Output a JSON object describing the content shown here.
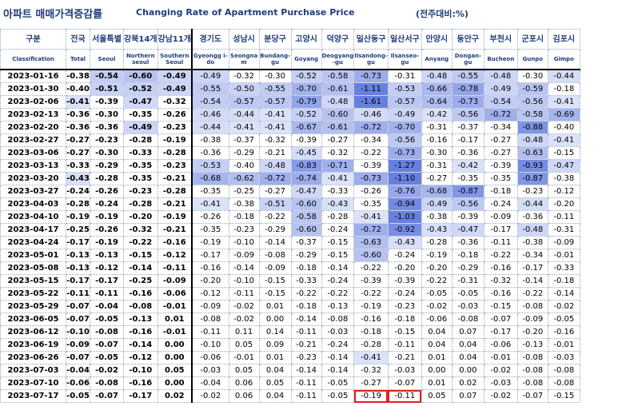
{
  "title": {
    "korean": "아파트 매매가격증감률",
    "english": "Changing Rate of Apartment Purchase Price",
    "unit": "(전주대비:%)"
  },
  "colors": {
    "header_text": "#1f3d7a",
    "highlight_box": "#e0201b",
    "heat_scale_min": "#ffffff",
    "heat_scale_max": "#6f86df"
  },
  "columns": [
    {
      "ko": "구분",
      "en": "Classification"
    },
    {
      "ko": "전국",
      "en": "Total"
    },
    {
      "ko": "서울특별",
      "en": "Seoul"
    },
    {
      "ko": "강북14개",
      "en": "Northern seoul"
    },
    {
      "ko": "강남11개",
      "en": "Southern Seoul"
    },
    {
      "ko": "경기도",
      "en": "Gyeongg i-do"
    },
    {
      "ko": "성남시",
      "en": "Seongna m"
    },
    {
      "ko": "분당구",
      "en": "Bundang-gu"
    },
    {
      "ko": "고양시",
      "en": "Goyang"
    },
    {
      "ko": "덕양구",
      "en": "Deogyang -gu"
    },
    {
      "ko": "일산동구",
      "en": "Ilsandong-gu"
    },
    {
      "ko": "일산서구",
      "en": "Ilsanseo-gu"
    },
    {
      "ko": "안양시",
      "en": "Anyang"
    },
    {
      "ko": "동안구",
      "en": "Dongan-gu"
    },
    {
      "ko": "부천시",
      "en": "Bucheon"
    },
    {
      "ko": "군포시",
      "en": "Gunpo"
    },
    {
      "ko": "김포시",
      "en": "Gimpo"
    }
  ],
  "rows": [
    {
      "date": "2023-01-16",
      "values": [
        "-0.38",
        "-0.54",
        "-0.60",
        "-0.49",
        "-0.49",
        "-0.32",
        "-0.30",
        "-0.52",
        "-0.58",
        "-0.73",
        "-0.31",
        "-0.48",
        "-0.55",
        "-0.48",
        "-0.30",
        "-0.44"
      ]
    },
    {
      "date": "2023-01-30",
      "values": [
        "-0.40",
        "-0.51",
        "-0.52",
        "-0.49",
        "-0.55",
        "-0.50",
        "-0.55",
        "-0.70",
        "-0.61",
        "-1.11",
        "-0.53",
        "-0.66",
        "-0.78",
        "-0.49",
        "-0.59",
        "-0.18"
      ]
    },
    {
      "date": "2023-02-06",
      "values": [
        "-0.41",
        "-0.39",
        "-0.47",
        "-0.32",
        "-0.54",
        "-0.57",
        "-0.57",
        "-0.79",
        "-0.48",
        "-1.61",
        "-0.57",
        "-0.64",
        "-0.73",
        "-0.54",
        "-0.56",
        "-0.41"
      ]
    },
    {
      "date": "2023-02-13",
      "values": [
        "-0.36",
        "-0.30",
        "-0.35",
        "-0.26",
        "-0.46",
        "-0.44",
        "-0.41",
        "-0.52",
        "-0.60",
        "-0.46",
        "-0.49",
        "-0.42",
        "-0.56",
        "-0.72",
        "-0.58",
        "-0.69"
      ]
    },
    {
      "date": "2023-02-20",
      "values": [
        "-0.36",
        "-0.36",
        "-0.49",
        "-0.23",
        "-0.44",
        "-0.41",
        "-0.41",
        "-0.67",
        "-0.61",
        "-0.72",
        "-0.70",
        "-0.31",
        "-0.37",
        "-0.34",
        "-0.88",
        "-0.40"
      ]
    },
    {
      "date": "2023-02-27",
      "values": [
        "-0.27",
        "-0.23",
        "-0.28",
        "-0.19",
        "-0.38",
        "-0.37",
        "-0.32",
        "-0.39",
        "-0.27",
        "-0.34",
        "-0.56",
        "-0.16",
        "-0.17",
        "-0.27",
        "-0.48",
        "-0.41"
      ]
    },
    {
      "date": "2023-03-06",
      "values": [
        "-0.27",
        "-0.30",
        "-0.33",
        "-0.28",
        "-0.36",
        "-0.29",
        "-0.21",
        "-0.45",
        "-0.32",
        "-0.22",
        "-0.73",
        "-0.30",
        "-0.36",
        "-0.27",
        "-0.63",
        "-0.15"
      ]
    },
    {
      "date": "2023-03-13",
      "values": [
        "-0.33",
        "-0.29",
        "-0.35",
        "-0.23",
        "-0.53",
        "-0.40",
        "-0.48",
        "-0.83",
        "-0.71",
        "-0.39",
        "-1.27",
        "-0.31",
        "-0.42",
        "-0.39",
        "-0.93",
        "-0.47"
      ]
    },
    {
      "date": "2023-03-20",
      "values": [
        "-0.43",
        "-0.28",
        "-0.35",
        "-0.21",
        "-0.68",
        "-0.62",
        "-0.72",
        "-0.74",
        "-0.41",
        "-0.73",
        "-1.10",
        "-0.27",
        "-0.35",
        "-0.35",
        "-0.87",
        "-0.38"
      ]
    },
    {
      "date": "2023-03-27",
      "values": [
        "-0.24",
        "-0.26",
        "-0.23",
        "-0.28",
        "-0.35",
        "-0.25",
        "-0.27",
        "-0.47",
        "-0.33",
        "-0.26",
        "-0.76",
        "-0.68",
        "-0.87",
        "-0.18",
        "-0.23",
        "-0.12"
      ]
    },
    {
      "date": "2023-04-03",
      "values": [
        "-0.28",
        "-0.24",
        "-0.28",
        "-0.21",
        "-0.41",
        "-0.38",
        "-0.51",
        "-0.60",
        "-0.43",
        "-0.35",
        "-0.94",
        "-0.49",
        "-0.56",
        "-0.24",
        "-0.44",
        "-0.20"
      ]
    },
    {
      "date": "2023-04-10",
      "values": [
        "-0.19",
        "-0.19",
        "-0.20",
        "-0.19",
        "-0.26",
        "-0.18",
        "-0.22",
        "-0.58",
        "-0.28",
        "-0.41",
        "-1.03",
        "-0.38",
        "-0.39",
        "-0.09",
        "-0.36",
        "-0.11"
      ]
    },
    {
      "date": "2023-04-17",
      "values": [
        "-0.25",
        "-0.26",
        "-0.32",
        "-0.21",
        "-0.35",
        "-0.23",
        "-0.29",
        "-0.60",
        "-0.24",
        "-0.72",
        "-0.92",
        "-0.43",
        "-0.47",
        "-0.17",
        "-0.48",
        "-0.31"
      ]
    },
    {
      "date": "2023-04-24",
      "values": [
        "-0.17",
        "-0.19",
        "-0.22",
        "-0.16",
        "-0.19",
        "-0.10",
        "-0.14",
        "-0.37",
        "-0.15",
        "-0.63",
        "-0.43",
        "-0.28",
        "-0.36",
        "-0.11",
        "-0.38",
        "-0.09"
      ]
    },
    {
      "date": "2023-05-01",
      "values": [
        "-0.13",
        "-0.13",
        "-0.15",
        "-0.12",
        "-0.17",
        "-0.09",
        "-0.08",
        "-0.29",
        "-0.15",
        "-0.60",
        "-0.24",
        "-0.19",
        "-0.18",
        "-0.22",
        "-0.34",
        "-0.01"
      ]
    },
    {
      "date": "2023-05-08",
      "values": [
        "-0.13",
        "-0.12",
        "-0.14",
        "-0.11",
        "-0.16",
        "-0.14",
        "-0.09",
        "-0.18",
        "-0.14",
        "-0.22",
        "-0.20",
        "-0.20",
        "-0.29",
        "-0.16",
        "-0.17",
        "-0.33"
      ]
    },
    {
      "date": "2023-05-15",
      "values": [
        "-0.17",
        "-0.17",
        "-0.25",
        "-0.09",
        "-0.20",
        "-0.10",
        "-0.15",
        "-0.33",
        "-0.24",
        "-0.39",
        "-0.39",
        "-0.22",
        "-0.31",
        "-0.32",
        "-0.14",
        "-0.18"
      ]
    },
    {
      "date": "2023-05-22",
      "values": [
        "-0.11",
        "-0.11",
        "-0.16",
        "-0.06",
        "-0.12",
        "-0.11",
        "-0.15",
        "-0.22",
        "-0.22",
        "-0.22",
        "-0.24",
        "-0.05",
        "-0.05",
        "-0.16",
        "-0.22",
        "-0.14"
      ]
    },
    {
      "date": "2023-05-29",
      "values": [
        "-0.07",
        "-0.04",
        "-0.08",
        "-0.01",
        "-0.09",
        "-0.02",
        "0.01",
        "-0.18",
        "-0.13",
        "-0.19",
        "-0.23",
        "-0.02",
        "-0.03",
        "-0.15",
        "-0.08",
        "-0.02"
      ]
    },
    {
      "date": "2023-06-05",
      "values": [
        "-0.07",
        "-0.05",
        "-0.13",
        "0.01",
        "-0.08",
        "-0.02",
        "0.00",
        "-0.14",
        "-0.08",
        "-0.16",
        "-0.18",
        "-0.06",
        "-0.08",
        "-0.07",
        "-0.09",
        "-0.05"
      ]
    },
    {
      "date": "2023-06-12",
      "values": [
        "-0.10",
        "-0.08",
        "-0.16",
        "-0.01",
        "-0.11",
        "0.11",
        "0.14",
        "-0.11",
        "-0.03",
        "-0.18",
        "-0.15",
        "0.04",
        "0.07",
        "-0.17",
        "-0.20",
        "-0.16"
      ]
    },
    {
      "date": "2023-06-19",
      "values": [
        "-0.09",
        "-0.07",
        "-0.14",
        "0.00",
        "-0.10",
        "0.05",
        "0.09",
        "-0.21",
        "-0.24",
        "-0.28",
        "-0.11",
        "0.04",
        "0.04",
        "-0.06",
        "-0.13",
        "-0.01"
      ]
    },
    {
      "date": "2023-06-26",
      "values": [
        "-0.07",
        "-0.05",
        "-0.12",
        "0.00",
        "-0.06",
        "-0.01",
        "0.01",
        "-0.23",
        "-0.14",
        "-0.41",
        "-0.21",
        "0.01",
        "0.04",
        "-0.01",
        "-0.08",
        "-0.03"
      ]
    },
    {
      "date": "2023-07-03",
      "values": [
        "-0.04",
        "-0.02",
        "-0.10",
        "0.05",
        "-0.03",
        "0.05",
        "0.04",
        "-0.14",
        "-0.14",
        "-0.32",
        "-0.03",
        "0.00",
        "0.00",
        "-0.02",
        "-0.08",
        "-0.08"
      ]
    },
    {
      "date": "2023-07-10",
      "values": [
        "-0.06",
        "-0.08",
        "-0.16",
        "0.00",
        "-0.04",
        "0.06",
        "0.05",
        "-0.11",
        "-0.05",
        "-0.27",
        "-0.07",
        "0.01",
        "0.02",
        "-0.03",
        "-0.08",
        "-0.08"
      ]
    },
    {
      "date": "2023-07-17",
      "values": [
        "-0.05",
        "-0.07",
        "-0.17",
        "0.02",
        "-0.02",
        "0.06",
        "0.04",
        "-0.11",
        "-0.05",
        "-0.19",
        "-0.11",
        "0.05",
        "0.07",
        "-0.02",
        "-0.07",
        "-0.15"
      ]
    }
  ],
  "highlighted_cells": [
    {
      "row": 25,
      "col": 10
    },
    {
      "row": 25,
      "col": 11
    }
  ]
}
